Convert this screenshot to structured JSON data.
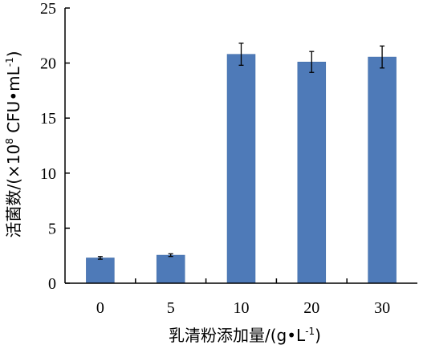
{
  "chart_data": {
    "type": "bar",
    "categories": [
      "0",
      "5",
      "10",
      "20",
      "30"
    ],
    "values": [
      2.3,
      2.55,
      20.8,
      20.1,
      20.55
    ],
    "errors": [
      0.12,
      0.12,
      1.0,
      0.95,
      1.0
    ],
    "ylim": [
      0,
      25
    ],
    "yticks": [
      "0",
      "5",
      "10",
      "15",
      "20",
      "25"
    ],
    "xlabel": {
      "main": "乳清粉添加量/(g•L",
      "sup": "-1",
      "end": ")"
    },
    "ylabel": {
      "part1": "活菌数/(×10",
      "sup1": "8",
      "part2": " CFU•mL",
      "sup2": "-1",
      "end": ")"
    },
    "bar_color": "#4e7ab8",
    "grid": false
  }
}
